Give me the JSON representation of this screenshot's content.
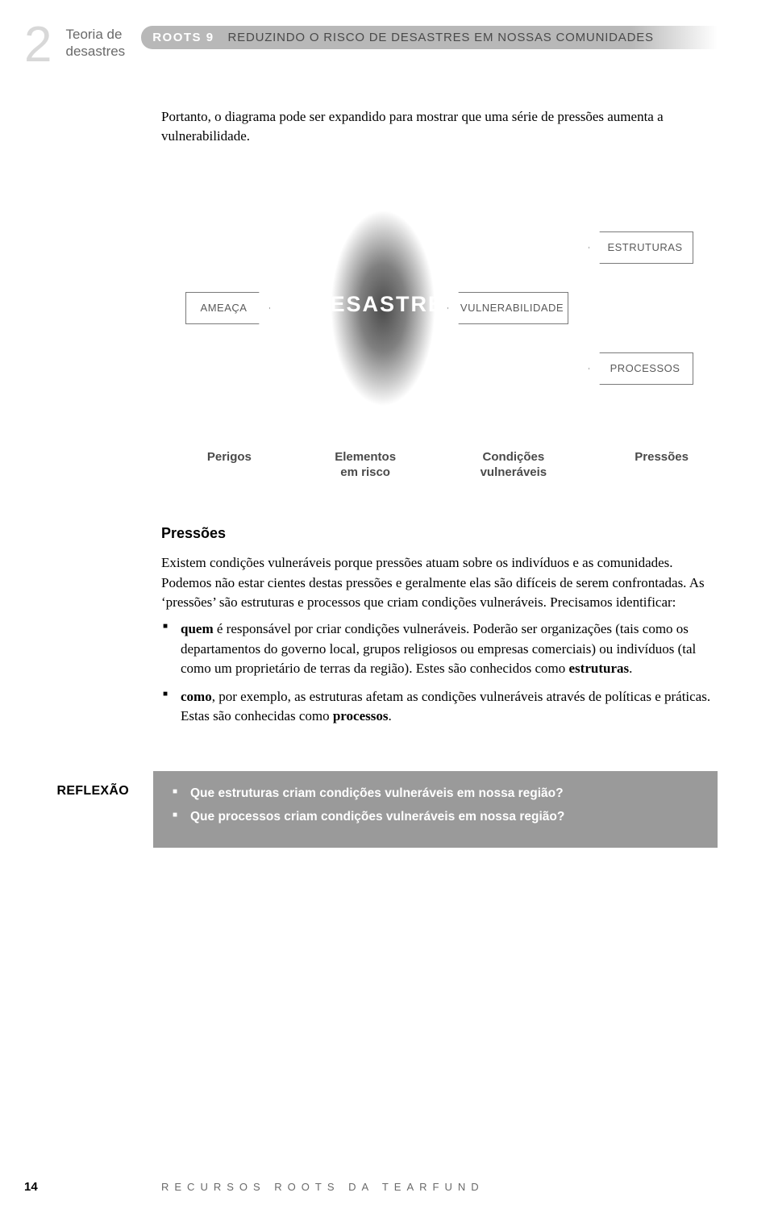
{
  "chapter_number": "2",
  "chapter_label_line1": "Teoria de",
  "chapter_label_line2": "desastres",
  "banner_roots": "ROOTS 9",
  "banner_title": "REDUZINDO O RISCO DE DESASTRES EM NOSSAS COMUNIDADES",
  "intro_text": "Portanto, o diagrama pode ser expandido para mostrar que uma série de pressões aumenta a vulnerabilidade.",
  "diagram": {
    "ameaca": "AMEAÇA",
    "desastre": "DESASTRE",
    "vulnerabilidade": "VULNERABILIDADE",
    "estruturas": "ESTRUTURAS",
    "processos": "PROCESSOS"
  },
  "labels": {
    "perigos": "Perigos",
    "elementos_l1": "Elementos",
    "elementos_l2": "em risco",
    "condicoes_l1": "Condições",
    "condicoes_l2": "vulneráveis",
    "pressoes": "Pressões"
  },
  "section_title": "Pressões",
  "section_para": "Existem condições vulneráveis porque pressões atuam sobre os indivíduos e as comunidades. Podemos não estar cientes destas pressões e geralmente elas são difíceis de serem confrontadas. As ‘pressões’ são estruturas e processos que criam condições vulneráveis. Precisamos identificar:",
  "bullets": {
    "b1_strong": "quem",
    "b1_rest": " é responsável por criar condições vulneráveis. Poderão ser organizações (tais como os departamentos do governo local, grupos religiosos ou empresas comerciais) ou indivíduos (tal como um proprietário de terras da região). Estes são conhecidos como ",
    "b1_strong2": "estruturas",
    "b1_end": ".",
    "b2_strong": "como",
    "b2_rest": ", por exemplo, as estruturas afetam as condições vulneráveis através de políticas e práticas. Estas são conhecidas como ",
    "b2_strong2": "processos",
    "b2_end": "."
  },
  "reflexao_label": "REFLEXÃO",
  "reflexao": {
    "q1": "Que estruturas criam condições vulneráveis em nossa região?",
    "q2": "Que processos criam condições vulneráveis em nossa região?"
  },
  "page_number": "14",
  "footer_text": "RECURSOS ROOTS DA TEARFUND"
}
